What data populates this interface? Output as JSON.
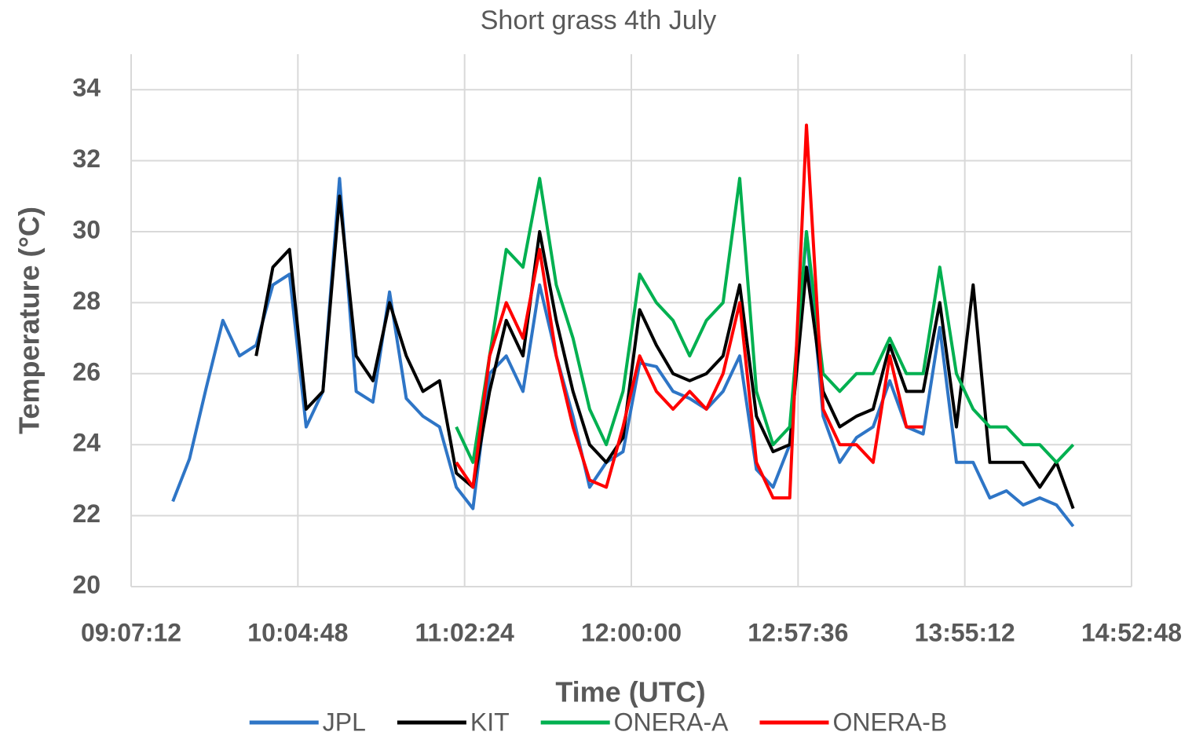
{
  "chart_data": {
    "type": "line",
    "title": "Short grass 4th July",
    "x_label": "Time (UTC)",
    "y_label": "Temperature (°C)",
    "x": [
      0.39,
      0.394,
      0.398,
      0.402,
      0.406,
      0.41,
      0.414,
      0.418,
      0.422,
      0.426,
      0.43,
      0.434,
      0.438,
      0.442,
      0.446,
      0.45,
      0.454,
      0.458,
      0.462,
      0.466,
      0.47,
      0.474,
      0.478,
      0.482,
      0.486,
      0.49,
      0.494,
      0.498,
      0.502,
      0.506,
      0.51,
      0.514,
      0.518,
      0.522,
      0.526,
      0.53,
      0.534,
      0.538,
      0.542,
      0.546,
      0.55,
      0.554,
      0.558,
      0.562,
      0.566,
      0.57,
      0.574,
      0.578,
      0.582,
      0.586,
      0.59,
      0.594,
      0.598,
      0.602,
      0.606
    ],
    "series": [
      {
        "name": "JPL",
        "color": "#2e75c6",
        "values": [
          22.4,
          23.6,
          25.6,
          27.5,
          26.5,
          26.8,
          28.5,
          28.8,
          24.5,
          25.5,
          31.5,
          25.5,
          25.2,
          28.3,
          25.3,
          24.8,
          24.5,
          22.8,
          22.2,
          26,
          26.5,
          25.5,
          28.5,
          26.5,
          24.8,
          22.8,
          23.5,
          23.8,
          26.3,
          26.2,
          25.5,
          25.3,
          25,
          25.5,
          26.5,
          23.3,
          22.8,
          24,
          30,
          24.8,
          23.5,
          24.2,
          24.5,
          25.8,
          24.5,
          24.3,
          27.3,
          23.5,
          23.5,
          22.5,
          22.7,
          22.3,
          22.5,
          22.3,
          21.7
        ]
      },
      {
        "name": "KIT",
        "color": "#000000",
        "values": [
          null,
          null,
          null,
          null,
          null,
          26.5,
          29,
          29.5,
          25,
          25.5,
          31,
          26.5,
          25.8,
          28,
          26.5,
          25.5,
          25.8,
          23.2,
          22.8,
          25.5,
          27.5,
          26.5,
          30,
          27.5,
          25.5,
          24,
          23.5,
          24.2,
          27.8,
          26.8,
          26,
          25.8,
          26,
          26.5,
          28.5,
          24.8,
          23.8,
          24,
          29,
          25.5,
          24.5,
          24.8,
          25,
          26.8,
          25.5,
          25.5,
          28,
          24.5,
          28.5,
          23.5,
          23.5,
          23.5,
          22.8,
          23.5,
          22.2
        ]
      },
      {
        "name": "ONERA-A",
        "color": "#00b050",
        "values": [
          null,
          null,
          null,
          null,
          null,
          null,
          null,
          null,
          null,
          null,
          null,
          null,
          null,
          null,
          null,
          null,
          null,
          24.5,
          23.5,
          26.5,
          29.5,
          29,
          31.5,
          28.5,
          27,
          25,
          24,
          25.5,
          28.8,
          28,
          27.5,
          26.5,
          27.5,
          28,
          31.5,
          25.5,
          24,
          24.5,
          30,
          26,
          25.5,
          26,
          26,
          27,
          26,
          26,
          29,
          26,
          25,
          24.5,
          24.5,
          24,
          24,
          23.5,
          24
        ]
      },
      {
        "name": "ONERA-B",
        "color": "#ff0000",
        "values": [
          null,
          null,
          null,
          null,
          null,
          null,
          null,
          null,
          null,
          null,
          null,
          null,
          null,
          null,
          null,
          null,
          null,
          23.5,
          22.8,
          26.5,
          28,
          27,
          29.5,
          26.5,
          24.5,
          23,
          22.8,
          24.5,
          26.5,
          25.5,
          25,
          25.5,
          25,
          26,
          28,
          23.5,
          22.5,
          22.5,
          33,
          25,
          24,
          24,
          23.5,
          26.5,
          24.5,
          24.5,
          null,
          null,
          null,
          null,
          null,
          null,
          null,
          null,
          null
        ]
      }
    ],
    "xlim": [
      0.38,
      0.62
    ],
    "xticks": [
      {
        "value": 0.38,
        "label": "09:07:12"
      },
      {
        "value": 0.42,
        "label": "10:04:48"
      },
      {
        "value": 0.46,
        "label": "11:02:24"
      },
      {
        "value": 0.5,
        "label": "12:00:00"
      },
      {
        "value": 0.54,
        "label": "12:57:36"
      },
      {
        "value": 0.58,
        "label": "13:55:12"
      },
      {
        "value": 0.62,
        "label": "14:52:48"
      }
    ],
    "ylim": [
      20,
      35
    ],
    "yticks": [
      20,
      22,
      24,
      26,
      28,
      30,
      32,
      34
    ],
    "grid": true,
    "legend": "bottom"
  }
}
